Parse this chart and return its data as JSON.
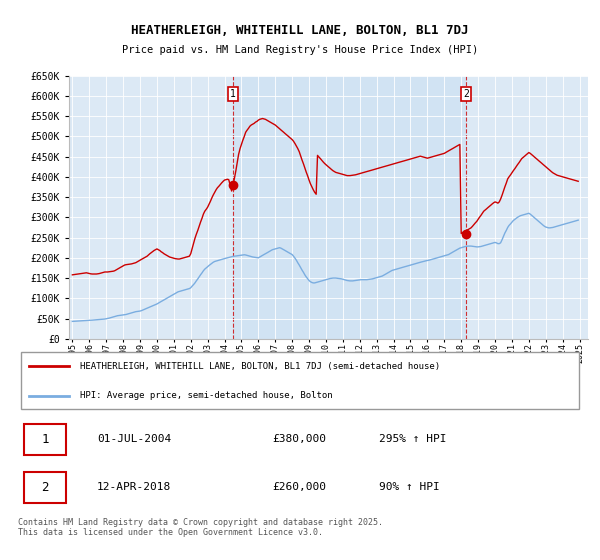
{
  "title": "HEATHERLEIGH, WHITEHILL LANE, BOLTON, BL1 7DJ",
  "subtitle": "Price paid vs. HM Land Registry's House Price Index (HPI)",
  "legend_line1": "HEATHERLEIGH, WHITEHILL LANE, BOLTON, BL1 7DJ (semi-detached house)",
  "legend_line2": "HPI: Average price, semi-detached house, Bolton",
  "footnote": "Contains HM Land Registry data © Crown copyright and database right 2025.\nThis data is licensed under the Open Government Licence v3.0.",
  "sale1_label": "1",
  "sale1_date": "01-JUL-2004",
  "sale1_price": "£380,000",
  "sale1_hpi": "295% ↑ HPI",
  "sale2_label": "2",
  "sale2_date": "12-APR-2018",
  "sale2_price": "£260,000",
  "sale2_hpi": "90% ↑ HPI",
  "sale1_x": 2004.5,
  "sale1_y": 380000,
  "sale2_x": 2018.28,
  "sale2_y": 260000,
  "red_color": "#cc0000",
  "blue_color": "#7aade0",
  "vline_color": "#cc0000",
  "bg_color": "#dce9f5",
  "highlight_color": "#c8dff2",
  "ylim": [
    0,
    650000
  ],
  "xlim_start": 1994.8,
  "xlim_end": 2025.5,
  "hpi_data_x": [
    1995.0,
    1995.08,
    1995.17,
    1995.25,
    1995.33,
    1995.42,
    1995.5,
    1995.58,
    1995.67,
    1995.75,
    1995.83,
    1995.92,
    1996.0,
    1996.08,
    1996.17,
    1996.25,
    1996.33,
    1996.42,
    1996.5,
    1996.58,
    1996.67,
    1996.75,
    1996.83,
    1996.92,
    1997.0,
    1997.08,
    1997.17,
    1997.25,
    1997.33,
    1997.42,
    1997.5,
    1997.58,
    1997.67,
    1997.75,
    1997.83,
    1997.92,
    1998.0,
    1998.08,
    1998.17,
    1998.25,
    1998.33,
    1998.42,
    1998.5,
    1998.58,
    1998.67,
    1998.75,
    1998.83,
    1998.92,
    1999.0,
    1999.08,
    1999.17,
    1999.25,
    1999.33,
    1999.42,
    1999.5,
    1999.58,
    1999.67,
    1999.75,
    1999.83,
    1999.92,
    2000.0,
    2000.08,
    2000.17,
    2000.25,
    2000.33,
    2000.42,
    2000.5,
    2000.58,
    2000.67,
    2000.75,
    2000.83,
    2000.92,
    2001.0,
    2001.08,
    2001.17,
    2001.25,
    2001.33,
    2001.42,
    2001.5,
    2001.58,
    2001.67,
    2001.75,
    2001.83,
    2001.92,
    2002.0,
    2002.08,
    2002.17,
    2002.25,
    2002.33,
    2002.42,
    2002.5,
    2002.58,
    2002.67,
    2002.75,
    2002.83,
    2002.92,
    2003.0,
    2003.08,
    2003.17,
    2003.25,
    2003.33,
    2003.42,
    2003.5,
    2003.58,
    2003.67,
    2003.75,
    2003.83,
    2003.92,
    2004.0,
    2004.08,
    2004.17,
    2004.25,
    2004.33,
    2004.42,
    2004.5,
    2004.58,
    2004.67,
    2004.75,
    2004.83,
    2004.92,
    2005.0,
    2005.08,
    2005.17,
    2005.25,
    2005.33,
    2005.42,
    2005.5,
    2005.58,
    2005.67,
    2005.75,
    2005.83,
    2005.92,
    2006.0,
    2006.08,
    2006.17,
    2006.25,
    2006.33,
    2006.42,
    2006.5,
    2006.58,
    2006.67,
    2006.75,
    2006.83,
    2006.92,
    2007.0,
    2007.08,
    2007.17,
    2007.25,
    2007.33,
    2007.42,
    2007.5,
    2007.58,
    2007.67,
    2007.75,
    2007.83,
    2007.92,
    2008.0,
    2008.08,
    2008.17,
    2008.25,
    2008.33,
    2008.42,
    2008.5,
    2008.58,
    2008.67,
    2008.75,
    2008.83,
    2008.92,
    2009.0,
    2009.08,
    2009.17,
    2009.25,
    2009.33,
    2009.42,
    2009.5,
    2009.58,
    2009.67,
    2009.75,
    2009.83,
    2009.92,
    2010.0,
    2010.08,
    2010.17,
    2010.25,
    2010.33,
    2010.42,
    2010.5,
    2010.58,
    2010.67,
    2010.75,
    2010.83,
    2010.92,
    2011.0,
    2011.08,
    2011.17,
    2011.25,
    2011.33,
    2011.42,
    2011.5,
    2011.58,
    2011.67,
    2011.75,
    2011.83,
    2011.92,
    2012.0,
    2012.08,
    2012.17,
    2012.25,
    2012.33,
    2012.42,
    2012.5,
    2012.58,
    2012.67,
    2012.75,
    2012.83,
    2012.92,
    2013.0,
    2013.08,
    2013.17,
    2013.25,
    2013.33,
    2013.42,
    2013.5,
    2013.58,
    2013.67,
    2013.75,
    2013.83,
    2013.92,
    2014.0,
    2014.08,
    2014.17,
    2014.25,
    2014.33,
    2014.42,
    2014.5,
    2014.58,
    2014.67,
    2014.75,
    2014.83,
    2014.92,
    2015.0,
    2015.08,
    2015.17,
    2015.25,
    2015.33,
    2015.42,
    2015.5,
    2015.58,
    2015.67,
    2015.75,
    2015.83,
    2015.92,
    2016.0,
    2016.08,
    2016.17,
    2016.25,
    2016.33,
    2016.42,
    2016.5,
    2016.58,
    2016.67,
    2016.75,
    2016.83,
    2016.92,
    2017.0,
    2017.08,
    2017.17,
    2017.25,
    2017.33,
    2017.42,
    2017.5,
    2017.58,
    2017.67,
    2017.75,
    2017.83,
    2017.92,
    2018.0,
    2018.08,
    2018.17,
    2018.25,
    2018.33,
    2018.42,
    2018.5,
    2018.58,
    2018.67,
    2018.75,
    2018.83,
    2018.92,
    2019.0,
    2019.08,
    2019.17,
    2019.25,
    2019.33,
    2019.42,
    2019.5,
    2019.58,
    2019.67,
    2019.75,
    2019.83,
    2019.92,
    2020.0,
    2020.08,
    2020.17,
    2020.25,
    2020.33,
    2020.42,
    2020.5,
    2020.58,
    2020.67,
    2020.75,
    2020.83,
    2020.92,
    2021.0,
    2021.08,
    2021.17,
    2021.25,
    2021.33,
    2021.42,
    2021.5,
    2021.58,
    2021.67,
    2021.75,
    2021.83,
    2021.92,
    2022.0,
    2022.08,
    2022.17,
    2022.25,
    2022.33,
    2022.42,
    2022.5,
    2022.58,
    2022.67,
    2022.75,
    2022.83,
    2022.92,
    2023.0,
    2023.08,
    2023.17,
    2023.25,
    2023.33,
    2023.42,
    2023.5,
    2023.58,
    2023.67,
    2023.75,
    2023.83,
    2023.92,
    2024.0,
    2024.08,
    2024.17,
    2024.25,
    2024.33,
    2024.42,
    2024.5,
    2024.58,
    2024.67,
    2024.75,
    2024.83,
    2024.92
  ],
  "hpi_data_y": [
    43000,
    43200,
    43400,
    43600,
    43800,
    44000,
    44200,
    44400,
    44600,
    44800,
    45000,
    45200,
    45500,
    45800,
    46100,
    46400,
    46700,
    47000,
    47300,
    47600,
    47900,
    48200,
    48500,
    48800,
    49500,
    50200,
    51000,
    52000,
    53000,
    54000,
    55000,
    56000,
    57000,
    57500,
    58000,
    58500,
    59000,
    59500,
    60000,
    61000,
    62000,
    63000,
    64000,
    65000,
    66000,
    67000,
    67500,
    68000,
    68500,
    69500,
    71000,
    72500,
    74000,
    75500,
    77000,
    78500,
    80000,
    81500,
    83000,
    84500,
    86000,
    88000,
    90000,
    92000,
    94000,
    96000,
    98000,
    100000,
    102000,
    104000,
    106000,
    108000,
    110000,
    112000,
    114000,
    116000,
    117000,
    118000,
    119000,
    120000,
    121000,
    122000,
    123000,
    124000,
    126000,
    130000,
    134000,
    138000,
    143000,
    148000,
    153000,
    158000,
    163000,
    168000,
    172000,
    175000,
    178000,
    181000,
    184000,
    187000,
    189000,
    191000,
    192000,
    193000,
    194000,
    195000,
    196000,
    197000,
    198000,
    199000,
    200000,
    201000,
    202000,
    203000,
    203500,
    204000,
    204500,
    205000,
    205500,
    206000,
    206500,
    207000,
    207500,
    207000,
    206000,
    205000,
    204000,
    203000,
    202000,
    201500,
    201000,
    200500,
    200000,
    202000,
    204000,
    206000,
    208000,
    210000,
    212000,
    214000,
    216000,
    218000,
    220000,
    221000,
    222000,
    223000,
    224000,
    225000,
    224000,
    222000,
    220000,
    218000,
    216000,
    214000,
    212000,
    210000,
    208000,
    204000,
    199000,
    194000,
    188000,
    182000,
    176000,
    170000,
    164000,
    158000,
    153000,
    148000,
    144000,
    141000,
    139000,
    138000,
    138000,
    139000,
    140000,
    141000,
    142000,
    143000,
    144000,
    145000,
    146000,
    147000,
    148000,
    149000,
    149500,
    150000,
    150000,
    150000,
    149500,
    149000,
    148500,
    148000,
    147000,
    146000,
    145000,
    144000,
    143500,
    143000,
    143000,
    143000,
    143500,
    144000,
    144500,
    145000,
    145500,
    146000,
    146000,
    146000,
    146000,
    146000,
    146500,
    147000,
    147500,
    148000,
    149000,
    150000,
    151000,
    152000,
    153000,
    154000,
    155000,
    157000,
    159000,
    161000,
    163000,
    165000,
    167000,
    169000,
    170000,
    171000,
    172000,
    173000,
    174000,
    175000,
    176000,
    177000,
    178000,
    179000,
    180000,
    181000,
    182000,
    183000,
    184000,
    185000,
    186000,
    187000,
    188000,
    189000,
    190000,
    191000,
    192000,
    193000,
    193500,
    194000,
    195000,
    196000,
    197000,
    198000,
    199000,
    200000,
    201000,
    202000,
    203000,
    204000,
    205000,
    206000,
    207000,
    208000,
    210000,
    212000,
    214000,
    216000,
    218000,
    220000,
    222000,
    224000,
    225000,
    226000,
    227000,
    228000,
    228500,
    229000,
    229000,
    229000,
    228500,
    228000,
    227500,
    227000,
    227000,
    227500,
    228000,
    229000,
    230000,
    231000,
    232000,
    233000,
    234000,
    235000,
    236000,
    237000,
    238000,
    237000,
    235000,
    235000,
    237000,
    245000,
    253000,
    261000,
    268000,
    275000,
    280000,
    284000,
    288000,
    292000,
    295000,
    298000,
    300000,
    302000,
    304000,
    305000,
    306000,
    307000,
    308000,
    309000,
    310000,
    308000,
    305000,
    302000,
    299000,
    296000,
    293000,
    290000,
    287000,
    284000,
    281000,
    278000,
    276000,
    275000,
    274000,
    274000,
    274500,
    275000,
    276000,
    277000,
    278000,
    279000,
    280000,
    281000,
    282000,
    283000,
    284000,
    285000,
    286000,
    287000,
    288000,
    289000,
    290000,
    291000,
    292000,
    293000
  ],
  "price_data_x": [
    1995.0,
    1995.08,
    1995.17,
    1995.25,
    1995.33,
    1995.42,
    1995.5,
    1995.58,
    1995.67,
    1995.75,
    1995.83,
    1995.92,
    1996.0,
    1996.08,
    1996.17,
    1996.25,
    1996.33,
    1996.42,
    1996.5,
    1996.58,
    1996.67,
    1996.75,
    1996.83,
    1996.92,
    1997.0,
    1997.08,
    1997.17,
    1997.25,
    1997.33,
    1997.42,
    1997.5,
    1997.58,
    1997.67,
    1997.75,
    1997.83,
    1997.92,
    1998.0,
    1998.08,
    1998.17,
    1998.25,
    1998.33,
    1998.42,
    1998.5,
    1998.58,
    1998.67,
    1998.75,
    1998.83,
    1998.92,
    1999.0,
    1999.08,
    1999.17,
    1999.25,
    1999.33,
    1999.42,
    1999.5,
    1999.58,
    1999.67,
    1999.75,
    1999.83,
    1999.92,
    2000.0,
    2000.08,
    2000.17,
    2000.25,
    2000.33,
    2000.42,
    2000.5,
    2000.58,
    2000.67,
    2000.75,
    2000.83,
    2000.92,
    2001.0,
    2001.08,
    2001.17,
    2001.25,
    2001.33,
    2001.42,
    2001.5,
    2001.58,
    2001.67,
    2001.75,
    2001.83,
    2001.92,
    2002.0,
    2002.08,
    2002.17,
    2002.25,
    2002.33,
    2002.42,
    2002.5,
    2002.58,
    2002.67,
    2002.75,
    2002.83,
    2002.92,
    2003.0,
    2003.08,
    2003.17,
    2003.25,
    2003.33,
    2003.42,
    2003.5,
    2003.58,
    2003.67,
    2003.75,
    2003.83,
    2003.92,
    2004.0,
    2004.08,
    2004.17,
    2004.25,
    2004.33,
    2004.42,
    2004.5,
    2004.58,
    2004.67,
    2004.75,
    2004.83,
    2004.92,
    2005.0,
    2005.08,
    2005.17,
    2005.25,
    2005.33,
    2005.42,
    2005.5,
    2005.58,
    2005.67,
    2005.75,
    2005.83,
    2005.92,
    2006.0,
    2006.08,
    2006.17,
    2006.25,
    2006.33,
    2006.42,
    2006.5,
    2006.58,
    2006.67,
    2006.75,
    2006.83,
    2006.92,
    2007.0,
    2007.08,
    2007.17,
    2007.25,
    2007.33,
    2007.42,
    2007.5,
    2007.58,
    2007.67,
    2007.75,
    2007.83,
    2007.92,
    2008.0,
    2008.08,
    2008.17,
    2008.25,
    2008.33,
    2008.42,
    2008.5,
    2008.58,
    2008.67,
    2008.75,
    2008.83,
    2008.92,
    2009.0,
    2009.08,
    2009.17,
    2009.25,
    2009.33,
    2009.42,
    2009.5,
    2009.58,
    2009.67,
    2009.75,
    2009.83,
    2009.92,
    2010.0,
    2010.08,
    2010.17,
    2010.25,
    2010.33,
    2010.42,
    2010.5,
    2010.58,
    2010.67,
    2010.75,
    2010.83,
    2010.92,
    2011.0,
    2011.08,
    2011.17,
    2011.25,
    2011.33,
    2011.42,
    2011.5,
    2011.58,
    2011.67,
    2011.75,
    2011.83,
    2011.92,
    2012.0,
    2012.08,
    2012.17,
    2012.25,
    2012.33,
    2012.42,
    2012.5,
    2012.58,
    2012.67,
    2012.75,
    2012.83,
    2012.92,
    2013.0,
    2013.08,
    2013.17,
    2013.25,
    2013.33,
    2013.42,
    2013.5,
    2013.58,
    2013.67,
    2013.75,
    2013.83,
    2013.92,
    2014.0,
    2014.08,
    2014.17,
    2014.25,
    2014.33,
    2014.42,
    2014.5,
    2014.58,
    2014.67,
    2014.75,
    2014.83,
    2014.92,
    2015.0,
    2015.08,
    2015.17,
    2015.25,
    2015.33,
    2015.42,
    2015.5,
    2015.58,
    2015.67,
    2015.75,
    2015.83,
    2015.92,
    2016.0,
    2016.08,
    2016.17,
    2016.25,
    2016.33,
    2016.42,
    2016.5,
    2016.58,
    2016.67,
    2016.75,
    2016.83,
    2016.92,
    2017.0,
    2017.08,
    2017.17,
    2017.25,
    2017.33,
    2017.42,
    2017.5,
    2017.58,
    2017.67,
    2017.75,
    2017.83,
    2017.92,
    2018.0,
    2018.08,
    2018.17,
    2018.25,
    2018.33,
    2018.42,
    2018.5,
    2018.58,
    2018.67,
    2018.75,
    2018.83,
    2018.92,
    2019.0,
    2019.08,
    2019.17,
    2019.25,
    2019.33,
    2019.42,
    2019.5,
    2019.58,
    2019.67,
    2019.75,
    2019.83,
    2019.92,
    2020.0,
    2020.08,
    2020.17,
    2020.25,
    2020.33,
    2020.42,
    2020.5,
    2020.58,
    2020.67,
    2020.75,
    2020.83,
    2020.92,
    2021.0,
    2021.08,
    2021.17,
    2021.25,
    2021.33,
    2021.42,
    2021.5,
    2021.58,
    2021.67,
    2021.75,
    2021.83,
    2021.92,
    2022.0,
    2022.08,
    2022.17,
    2022.25,
    2022.33,
    2022.42,
    2022.5,
    2022.58,
    2022.67,
    2022.75,
    2022.83,
    2022.92,
    2023.0,
    2023.08,
    2023.17,
    2023.25,
    2023.33,
    2023.42,
    2023.5,
    2023.58,
    2023.67,
    2023.75,
    2023.83,
    2023.92,
    2024.0,
    2024.08,
    2024.17,
    2024.25,
    2024.33,
    2024.42,
    2024.5,
    2024.58,
    2024.67,
    2024.75,
    2024.83,
    2024.92
  ],
  "price_data_y": [
    158000,
    158500,
    159000,
    159500,
    160000,
    160500,
    161000,
    161500,
    162000,
    162500,
    163000,
    162000,
    161000,
    160500,
    160000,
    160000,
    160000,
    160000,
    160500,
    161000,
    162000,
    163000,
    164000,
    165000,
    165000,
    165000,
    165500,
    166000,
    166500,
    167000,
    168000,
    170000,
    172000,
    174000,
    176000,
    178000,
    180000,
    182000,
    183000,
    183500,
    184000,
    184500,
    185000,
    186000,
    187000,
    188000,
    190000,
    192000,
    194000,
    196000,
    198000,
    200000,
    202000,
    204000,
    207000,
    210000,
    213000,
    216000,
    218000,
    220000,
    222000,
    220000,
    218000,
    215000,
    213000,
    210000,
    208000,
    206000,
    204000,
    202000,
    201000,
    200000,
    199000,
    198000,
    197500,
    197000,
    197000,
    198000,
    199000,
    200000,
    201000,
    202000,
    203000,
    204000,
    210000,
    222000,
    235000,
    248000,
    258000,
    268000,
    278000,
    288000,
    298000,
    308000,
    315000,
    320000,
    325000,
    332000,
    340000,
    348000,
    355000,
    362000,
    368000,
    373000,
    377000,
    381000,
    385000,
    389000,
    392000,
    393000,
    394000,
    393000,
    380000,
    365000,
    380000,
    395000,
    415000,
    435000,
    455000,
    470000,
    480000,
    490000,
    500000,
    510000,
    515000,
    520000,
    525000,
    528000,
    530000,
    532000,
    535000,
    537000,
    540000,
    542000,
    543000,
    544000,
    543000,
    542000,
    540000,
    538000,
    536000,
    534000,
    532000,
    530000,
    528000,
    525000,
    522000,
    519000,
    516000,
    513000,
    510000,
    507000,
    504000,
    501000,
    498000,
    495000,
    492000,
    488000,
    482000,
    476000,
    470000,
    462000,
    452000,
    442000,
    432000,
    422000,
    412000,
    402000,
    392000,
    383000,
    375000,
    368000,
    362000,
    357000,
    453000,
    449000,
    445000,
    441000,
    437000,
    433000,
    430000,
    427000,
    424000,
    421000,
    418000,
    415000,
    413000,
    411000,
    410000,
    409000,
    408000,
    407000,
    406000,
    405000,
    404000,
    403000,
    403000,
    403000,
    403500,
    404000,
    404500,
    405000,
    406000,
    407000,
    408000,
    409000,
    410000,
    411000,
    412000,
    413000,
    414000,
    415000,
    416000,
    417000,
    418000,
    419000,
    420000,
    421000,
    422000,
    423000,
    424000,
    425000,
    426000,
    427000,
    428000,
    429000,
    430000,
    431000,
    432000,
    433000,
    434000,
    435000,
    436000,
    437000,
    438000,
    439000,
    440000,
    441000,
    442000,
    443000,
    444000,
    445000,
    446000,
    447000,
    448000,
    449000,
    450000,
    451000,
    450000,
    449000,
    448000,
    447000,
    446000,
    447000,
    448000,
    449000,
    450000,
    451000,
    452000,
    453000,
    454000,
    455000,
    456000,
    457000,
    458000,
    460000,
    462000,
    464000,
    466000,
    468000,
    470000,
    472000,
    474000,
    476000,
    478000,
    480000,
    260000,
    262000,
    264000,
    266000,
    268000,
    270000,
    272000,
    274000,
    278000,
    282000,
    286000,
    290000,
    295000,
    300000,
    305000,
    310000,
    315000,
    318000,
    321000,
    324000,
    327000,
    330000,
    333000,
    336000,
    338000,
    337000,
    335000,
    338000,
    345000,
    355000,
    365000,
    375000,
    385000,
    395000,
    400000,
    405000,
    410000,
    415000,
    420000,
    425000,
    430000,
    435000,
    440000,
    445000,
    448000,
    451000,
    454000,
    457000,
    460000,
    458000,
    455000,
    452000,
    449000,
    446000,
    443000,
    440000,
    437000,
    434000,
    431000,
    428000,
    425000,
    422000,
    419000,
    416000,
    413000,
    410000,
    408000,
    406000,
    404000,
    403000,
    402000,
    401000,
    400000,
    399000,
    398000,
    397000,
    396000,
    395000,
    394000,
    393000,
    392000,
    391000,
    390000,
    389000
  ],
  "xticks": [
    1995,
    1996,
    1997,
    1998,
    1999,
    2000,
    2001,
    2002,
    2003,
    2004,
    2005,
    2006,
    2007,
    2008,
    2009,
    2010,
    2011,
    2012,
    2013,
    2014,
    2015,
    2016,
    2017,
    2018,
    2019,
    2020,
    2021,
    2022,
    2023,
    2024,
    2025
  ]
}
